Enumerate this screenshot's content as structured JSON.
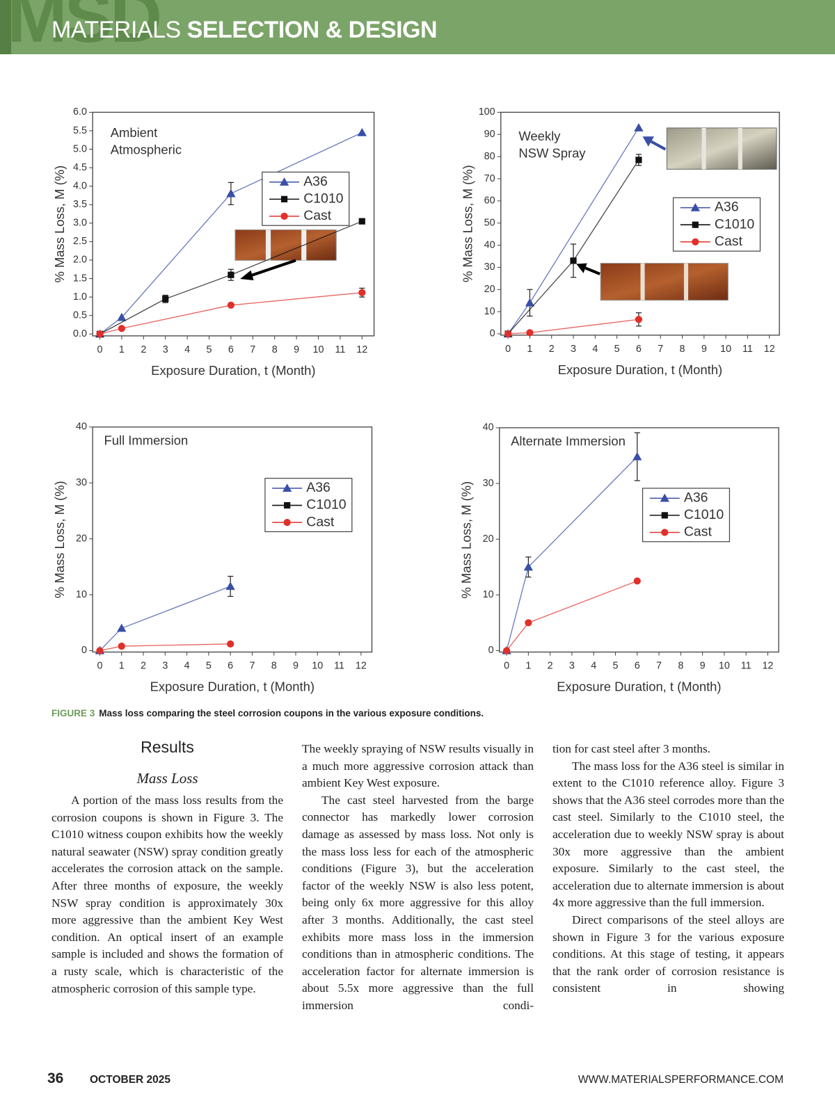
{
  "header": {
    "brand_mark": "MSD",
    "section_light": "MATERIALS",
    "section_bold": "SELECTION & DESIGN"
  },
  "chart_data": [
    {
      "type": "line",
      "annotation": [
        "Ambient",
        "Atmospheric"
      ],
      "xlabel": "Exposure Duration, t (Month)",
      "ylabel": "% Mass Loss, M (%)",
      "xlim": [
        -0.33,
        12.55
      ],
      "ylim": [
        -0.05,
        6.0
      ],
      "xticks": [
        0,
        1,
        2,
        3,
        4,
        5,
        6,
        7,
        8,
        9,
        10,
        11,
        12
      ],
      "yticks": [
        {
          "value": 0,
          "label": "0.0"
        },
        0.5,
        {
          "value": 1,
          "label": "1.0"
        },
        1.5,
        {
          "value": 2,
          "label": "2.0"
        },
        2.5,
        {
          "value": 3,
          "label": "3.0"
        },
        3.5,
        {
          "value": 4,
          "label": "4.0"
        },
        4.5,
        {
          "value": 5,
          "label": "5.0"
        },
        5.5,
        {
          "value": 6,
          "label": "6.0"
        }
      ],
      "grid": false,
      "series": [
        {
          "name": "A36",
          "color": "#3a4fa6",
          "marker": "triangle",
          "x": [
            0,
            1,
            6,
            12
          ],
          "values": [
            0,
            0.45,
            3.8,
            5.45
          ],
          "errors": [
            null,
            null,
            0.3,
            null
          ]
        },
        {
          "name": "C1010",
          "color": "#111111",
          "marker": "square",
          "x": [
            0,
            3,
            6,
            12
          ],
          "values": [
            0,
            0.95,
            1.6,
            3.05
          ],
          "errors": [
            null,
            0.1,
            0.15,
            null
          ]
        },
        {
          "name": "Cast",
          "color": "#e0302a",
          "marker": "circle",
          "x": [
            0,
            1,
            6,
            12
          ],
          "values": [
            0,
            0.15,
            0.78,
            1.12
          ],
          "errors": [
            null,
            null,
            null,
            0.12
          ]
        }
      ]
    },
    {
      "type": "line",
      "annotation": [
        "Weekly",
        "NSW Spray"
      ],
      "xlabel": "Exposure Duration, t (Month)",
      "ylabel": "% Mass Loss, M (%)",
      "xlim": [
        -0.33,
        12.46
      ],
      "ylim": [
        -0.6,
        100
      ],
      "xticks": [
        0,
        1,
        2,
        3,
        4,
        5,
        6,
        7,
        8,
        9,
        10,
        11,
        12
      ],
      "yticks": [
        0,
        10,
        20,
        30,
        40,
        50,
        60,
        70,
        80,
        90,
        100
      ],
      "grid": false,
      "series": [
        {
          "name": "A36",
          "color": "#3a4fa6",
          "marker": "triangle",
          "x": [
            0,
            1,
            6
          ],
          "values": [
            0,
            14,
            93
          ],
          "errors": [
            null,
            6,
            null
          ]
        },
        {
          "name": "C1010",
          "color": "#111111",
          "marker": "square",
          "x": [
            0,
            3,
            6
          ],
          "values": [
            0,
            33,
            78.5
          ],
          "errors": [
            null,
            7.5,
            2.5
          ]
        },
        {
          "name": "Cast",
          "color": "#e0302a",
          "marker": "circle",
          "x": [
            0,
            1,
            6
          ],
          "values": [
            0,
            0.5,
            6.5
          ],
          "errors": [
            null,
            null,
            3
          ]
        }
      ]
    },
    {
      "type": "line",
      "annotation": [
        "Full Immersion"
      ],
      "xlabel": "Exposure Duration, t (Month)",
      "ylabel": "% Mass Loss, M (%)",
      "xlim": [
        -0.33,
        12.5
      ],
      "ylim": [
        -0.25,
        40
      ],
      "xticks": [
        0,
        1,
        2,
        3,
        4,
        5,
        6,
        7,
        8,
        9,
        10,
        11,
        12
      ],
      "yticks": [
        0,
        10,
        20,
        30,
        40
      ],
      "grid": false,
      "series": [
        {
          "name": "A36",
          "color": "#3a4fa6",
          "marker": "triangle",
          "x": [
            0,
            1,
            6
          ],
          "values": [
            0,
            4,
            11.5
          ],
          "errors": [
            null,
            null,
            1.8
          ]
        },
        {
          "name": "C1010",
          "color": "#111111",
          "marker": "square",
          "x": [],
          "values": [],
          "errors": []
        },
        {
          "name": "Cast",
          "color": "#e0302a",
          "marker": "circle",
          "x": [
            0,
            1,
            6
          ],
          "values": [
            0,
            0.8,
            1.2
          ],
          "errors": [
            null,
            null,
            null
          ]
        }
      ]
    },
    {
      "type": "line",
      "annotation": [
        "Alternate Immersion"
      ],
      "xlabel": "Exposure Duration, t (Month)",
      "ylabel": "% Mass Loss, M (%)",
      "xlim": [
        -0.33,
        12.5
      ],
      "ylim": [
        -0.25,
        40
      ],
      "xticks": [
        0,
        1,
        2,
        3,
        4,
        5,
        6,
        7,
        8,
        9,
        10,
        11,
        12
      ],
      "yticks": [
        0,
        10,
        20,
        30,
        40
      ],
      "grid": false,
      "series": [
        {
          "name": "A36",
          "color": "#3a4fa6",
          "marker": "triangle",
          "x": [
            0,
            1,
            6
          ],
          "values": [
            0,
            15,
            34.8
          ],
          "errors": [
            null,
            1.8,
            4.3
          ]
        },
        {
          "name": "C1010",
          "color": "#111111",
          "marker": "square",
          "x": [],
          "values": [],
          "errors": []
        },
        {
          "name": "Cast",
          "color": "#e0302a",
          "marker": "circle",
          "x": [
            0,
            1,
            6
          ],
          "values": [
            0,
            5,
            12.5
          ],
          "errors": [
            null,
            null,
            null
          ]
        }
      ]
    }
  ],
  "figure": {
    "caption_label": "FIGURE 3",
    "caption_text": "Mass loss comparing the steel corrosion coupons in the various exposure conditions."
  },
  "body": {
    "heading": "Results",
    "subheading": "Mass Loss",
    "columns": [
      [
        "A portion of the mass loss results from the corrosion coupons is shown in Figure 3. The C1010 witness coupon exhibits how the weekly natural seawater (NSW) spray condition greatly accelerates the corrosion attack on the sample. After three months of exposure, the weekly NSW spray condition is approximately 30x more aggressive than the ambient Key West condition. An optical insert of an example sample is included and shows the formation of a rusty scale, which is characteristic of the atmospheric corrosion of this sample type."
      ],
      [
        "The weekly spraying of NSW results visually in a much more aggressive corrosion attack than ambient Key West exposure.",
        "The cast steel harvested from the barge connector has markedly lower corrosion damage as assessed by mass loss. Not only is the mass loss less for each of the atmospheric conditions (Figure 3), but the acceleration factor of the weekly NSW is also less potent, being only 6x more aggressive for this alloy after 3 months. Additionally, the cast steel exhibits more mass loss in the immersion conditions than in atmospheric conditions. The acceleration factor for alternate immersion is about 5.5x more aggressive than the full immersion condi-"
      ],
      [
        "tion for cast steel after 3 months.",
        "The mass loss for the A36 steel is similar in extent to the C1010 reference alloy. Figure 3 shows that the A36 steel corrodes more than the cast steel. Similarly to the C1010 steel, the acceleration due to weekly NSW spray is about 30x more aggressive than the ambient exposure. Similarly to the cast steel, the acceleration due to alternate immersion is about 4x more aggressive than the full immersion.",
        "Direct comparisons of the steel alloys are shown in Figure 3 for the various exposure conditions. At this stage of testing, it appears that the rank order of corrosion resistance is consistent in showing"
      ]
    ]
  },
  "footer": {
    "page_number": "36",
    "date": "OCTOBER 2025",
    "url": "WWW.MATERIALSPERFORMANCE.COM"
  }
}
